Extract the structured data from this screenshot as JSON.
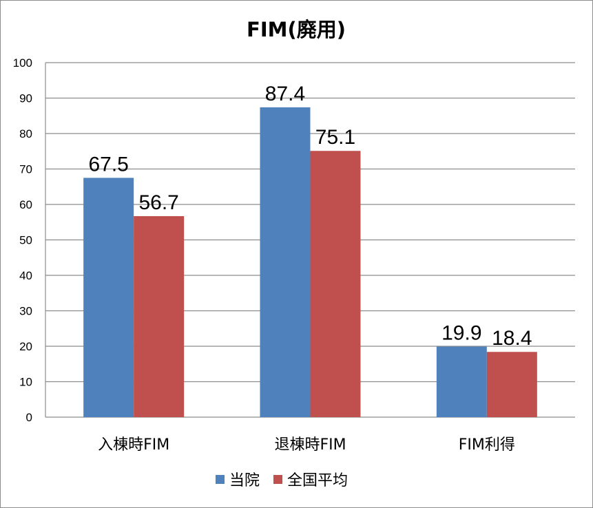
{
  "chart_data": {
    "type": "bar",
    "title": "FIM(廃用)",
    "categories": [
      "入棟時FIM",
      "退棟時FIM",
      "FIM利得"
    ],
    "series": [
      {
        "name": "当院",
        "color": "#4F81BD",
        "values": [
          67.5,
          87.4,
          19.9
        ],
        "labels": [
          "67.5",
          "87.4",
          "19.9"
        ]
      },
      {
        "name": "全国平均",
        "color": "#C0504D",
        "values": [
          56.7,
          75.1,
          18.4
        ],
        "labels": [
          "56.7",
          "75.1",
          "18.4"
        ]
      }
    ],
    "ylim": [
      0,
      100
    ],
    "yticks": [
      "0",
      "10",
      "20",
      "30",
      "40",
      "50",
      "60",
      "70",
      "80",
      "90",
      "100"
    ],
    "grid": true,
    "legend": "bottom"
  }
}
